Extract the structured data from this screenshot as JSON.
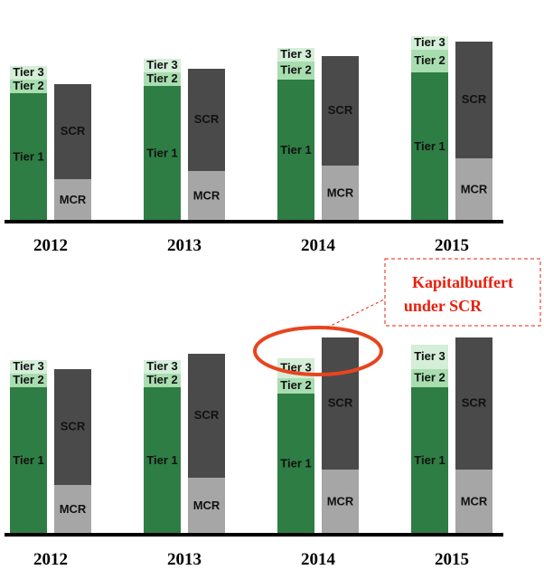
{
  "colors": {
    "tier1": "#2e7d44",
    "tier2": "#a8ddb0",
    "tier3": "#d4eed8",
    "scr": "#4a4a4a",
    "mcr": "#a6a6a6",
    "axis": "#000000",
    "highlight": "#e8441e",
    "callout": "#e8200c"
  },
  "labels": {
    "tier1": "Tier 1",
    "tier2": "Tier 2",
    "tier3": "Tier 3",
    "scr": "SCR",
    "mcr": "MCR"
  },
  "annotation": {
    "line1": "Kapitalbuffert",
    "line2": "under SCR",
    "highlight_year": "2014"
  },
  "chart_data": [
    {
      "type": "bar",
      "stacked": true,
      "categories": [
        "2012",
        "2013",
        "2014",
        "2015"
      ],
      "own_funds": {
        "tier1": [
          142,
          150,
          157,
          165
        ],
        "tier2": [
          15,
          15,
          20,
          25
        ],
        "tier3": [
          15,
          15,
          15,
          15
        ]
      },
      "requirements": {
        "mcr": [
          47,
          56,
          62,
          70
        ],
        "scr": [
          105,
          113,
          121,
          129
        ]
      }
    },
    {
      "type": "bar",
      "stacked": true,
      "categories": [
        "2012",
        "2013",
        "2014",
        "2015"
      ],
      "own_funds": {
        "tier1": [
          163,
          163,
          156,
          163
        ],
        "tier2": [
          15,
          15,
          17,
          20
        ],
        "tier3": [
          15,
          15,
          22,
          27
        ]
      },
      "requirements": {
        "mcr": [
          55,
          63,
          72,
          72
        ],
        "scr": [
          128,
          137,
          146,
          146
        ]
      }
    }
  ]
}
